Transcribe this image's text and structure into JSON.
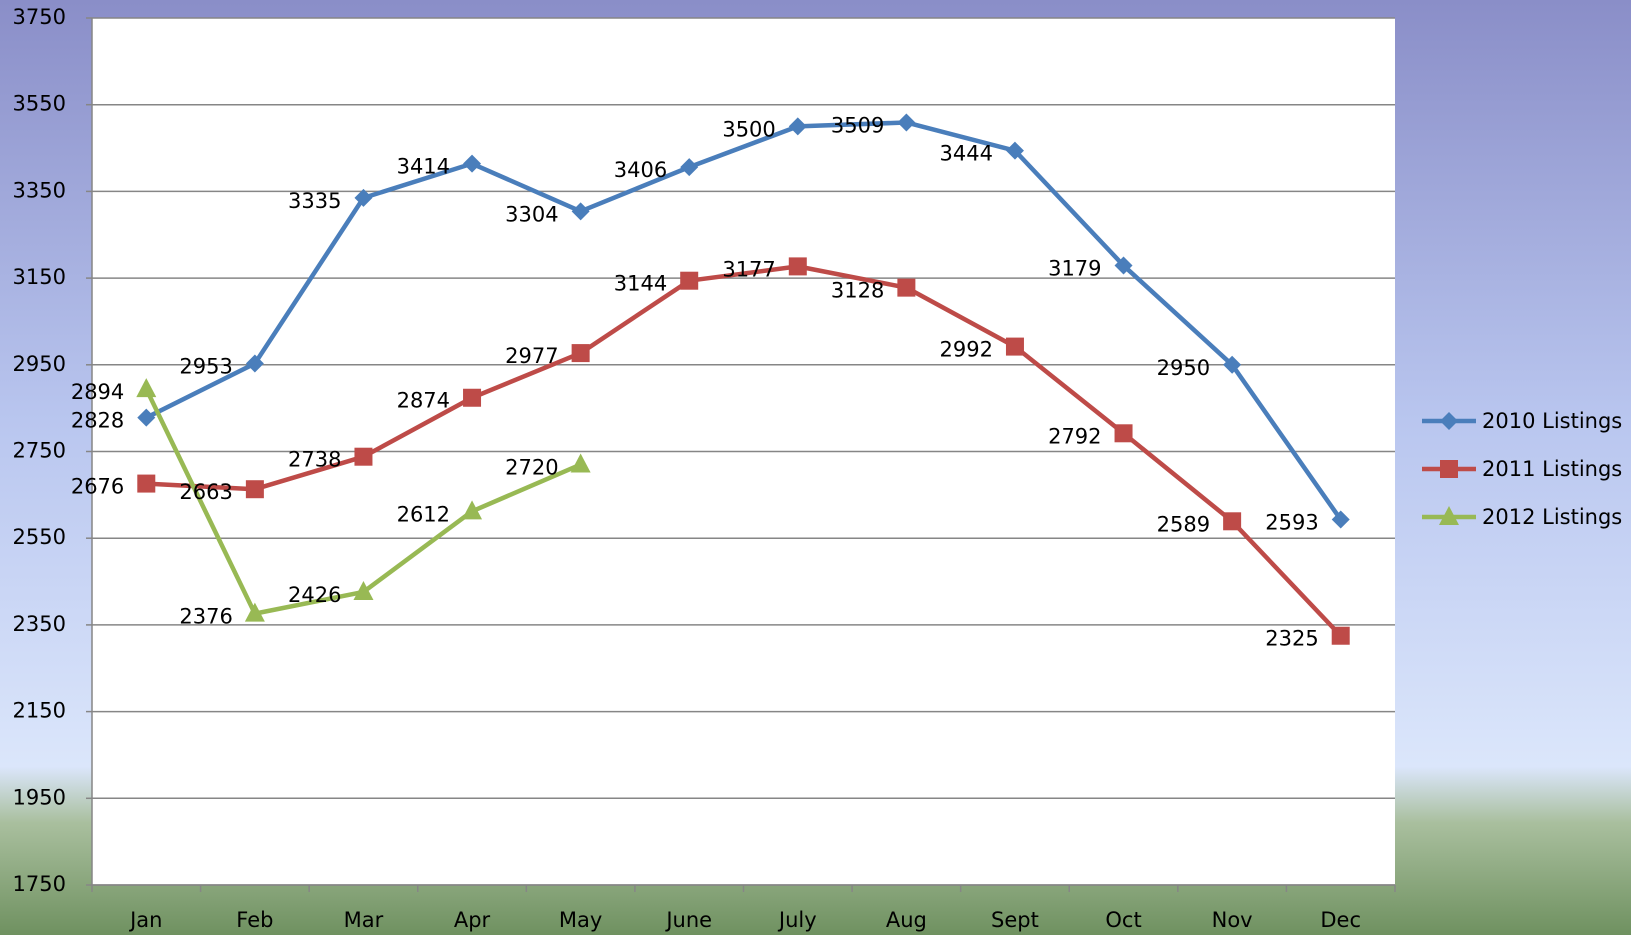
{
  "chart_data": {
    "type": "line",
    "categories": [
      "Jan",
      "Feb",
      "Mar",
      "Apr",
      "May",
      "June",
      "July",
      "Aug",
      "Sept",
      "Oct",
      "Nov",
      "Dec"
    ],
    "series": [
      {
        "name": "2010 Listings",
        "color": "#4a7ebb",
        "marker": "diamond",
        "values": [
          2828,
          2953,
          3335,
          3414,
          3304,
          3406,
          3500,
          3509,
          3444,
          3179,
          2950,
          2593
        ]
      },
      {
        "name": "2011 Listings",
        "color": "#be4b48",
        "marker": "square",
        "values": [
          2676,
          2663,
          2738,
          2874,
          2977,
          3144,
          3177,
          3128,
          2992,
          2792,
          2589,
          2325
        ]
      },
      {
        "name": "2012 Listings",
        "color": "#98b954",
        "marker": "triangle",
        "values": [
          2894,
          2376,
          2426,
          2612,
          2720,
          null,
          null,
          null,
          null,
          null,
          null,
          null
        ]
      }
    ],
    "ylim": [
      1750,
      3750
    ],
    "yticks": [
      1750,
      1950,
      2150,
      2350,
      2550,
      2750,
      2950,
      3150,
      3350,
      3550,
      3750
    ],
    "grid": true,
    "legend": "right",
    "data_labels": true
  }
}
